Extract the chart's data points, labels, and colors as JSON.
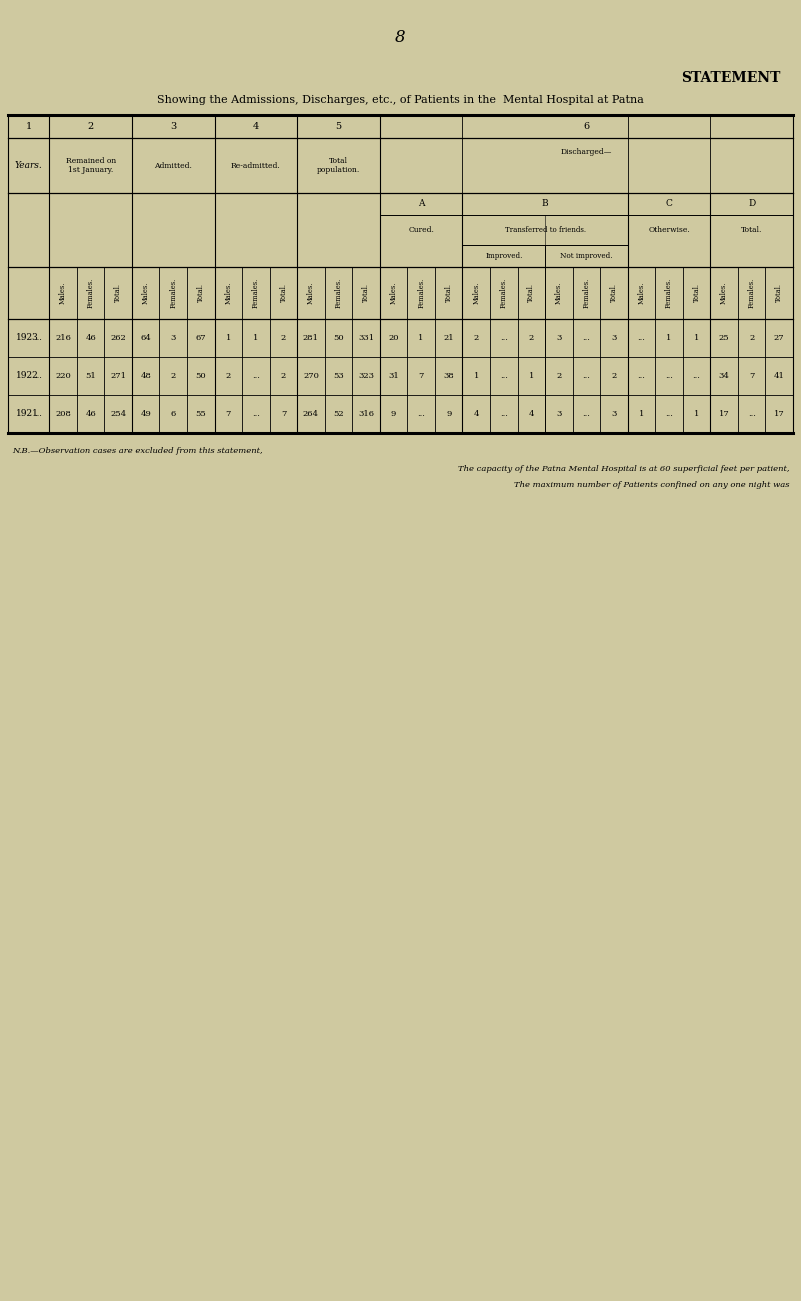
{
  "page_number": "8",
  "title": "STATEMENT",
  "subtitle": "Showing the Admissions, Discharges, etc., of Patients in the  Mental Hospital at Patna",
  "background_color": "#cfc9a0",
  "table_bg": "#d4cfa8",
  "col_groups": [
    "1",
    "2",
    "3",
    "4",
    "5",
    "6"
  ],
  "col2_header": "Remained on\n1st January.",
  "col3_header": "Admitted.",
  "col4_header": "Re-admitted.",
  "col5_header": "Total\npopulation.",
  "col6_header": "Discharged—",
  "col6A_header": "A",
  "col6B_header": "B",
  "col6C_header": "C",
  "col6D_header": "D",
  "col6A_sub": "Cured.",
  "col6B_sub": "Transferred to friends.",
  "col6B_sub2a": "Improved.",
  "col6B_sub2b": "Not improved.",
  "col6C_sub": "Otherwise.",
  "col6D_sub": "Total.",
  "years_label": "Years.",
  "data": [
    {
      "year": "1923",
      "dots": "...",
      "remained": [
        "216",
        "46",
        "262"
      ],
      "admitted": [
        "64",
        "3",
        "67"
      ],
      "readmitted": [
        "1",
        "1",
        "2"
      ],
      "total_pop": [
        "281",
        "50",
        "331"
      ],
      "cured": [
        "20",
        "1",
        "21"
      ],
      "transferred_improved": [
        "2",
        "...",
        "2"
      ],
      "transferred_not_improved": [
        "3",
        "...",
        "3"
      ],
      "otherwise": [
        "...",
        "1",
        "1"
      ],
      "total_discharged": [
        "25",
        "2",
        "27"
      ]
    },
    {
      "year": "1922",
      "dots": "...",
      "remained": [
        "220",
        "51",
        "271"
      ],
      "admitted": [
        "48",
        "2",
        "50"
      ],
      "readmitted": [
        "2",
        "...",
        "2"
      ],
      "total_pop": [
        "270",
        "53",
        "323"
      ],
      "cured": [
        "31",
        "7",
        "38"
      ],
      "transferred_improved": [
        "1",
        "...",
        "1"
      ],
      "transferred_not_improved": [
        "2",
        "...",
        "2"
      ],
      "otherwise": [
        "...",
        "...",
        "..."
      ],
      "total_discharged": [
        "34",
        "7",
        "41"
      ]
    },
    {
      "year": "1921",
      "dots": "...",
      "remained": [
        "208",
        "46",
        "254"
      ],
      "admitted": [
        "49",
        "6",
        "55"
      ],
      "readmitted": [
        "7",
        "...",
        "7"
      ],
      "total_pop": [
        "264",
        "52",
        "316"
      ],
      "cured": [
        "9",
        "...",
        "9"
      ],
      "transferred_improved": [
        "4",
        "...",
        "4"
      ],
      "transferred_not_improved": [
        "3",
        "...",
        "3"
      ],
      "otherwise": [
        "1",
        "...",
        "1"
      ],
      "total_discharged": [
        "17",
        "...",
        "17"
      ]
    }
  ],
  "footnote1": "N.B.—Observation cases are excluded from this statement,",
  "footnote2": "The capacity of the Patna Mental Hospital is at 60 superficial feet per patient,",
  "footnote3": "The maximum number of Patients confined on any one night was"
}
